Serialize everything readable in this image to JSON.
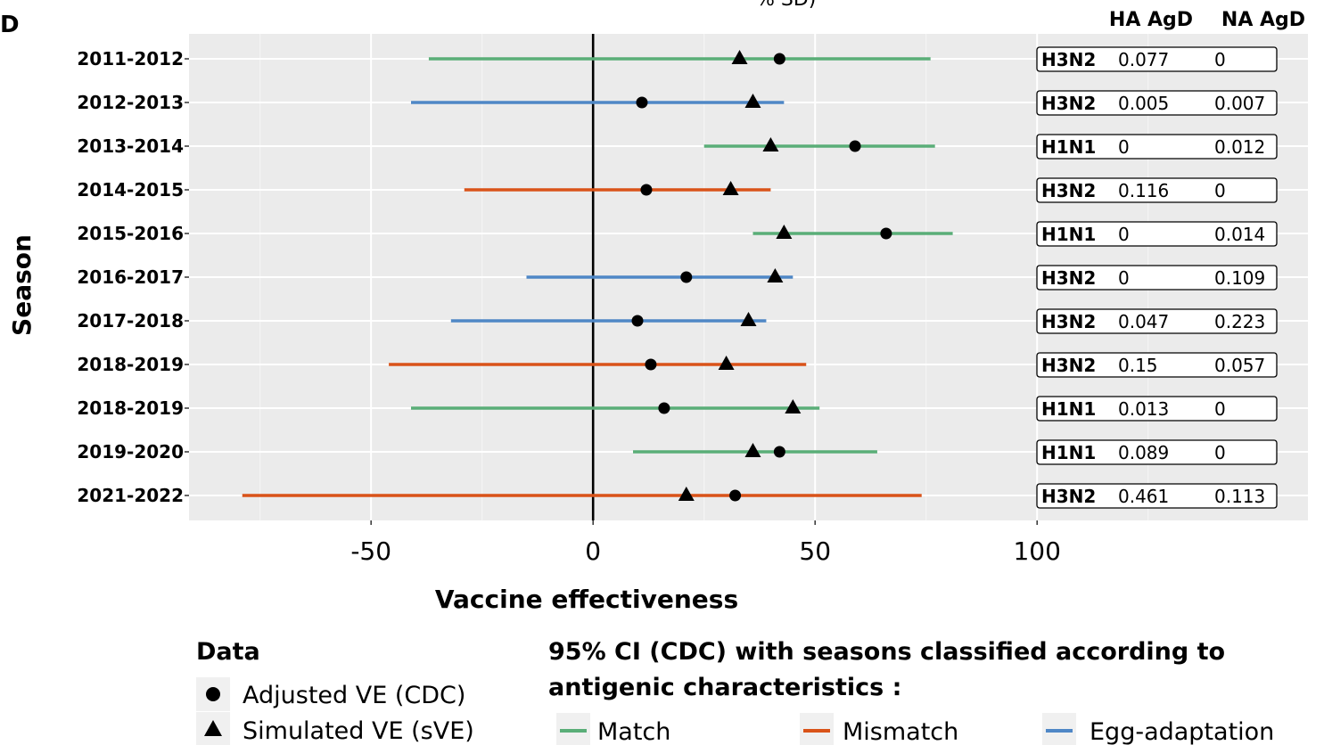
{
  "panel_label": "D",
  "top_partial_text": "% SD)",
  "chart_data": {
    "type": "forest",
    "xlabel": "Vaccine effectiveness",
    "ylabel": "Season",
    "xlim": [
      -91,
      161
    ],
    "xticks": [
      -50,
      0,
      50,
      100
    ],
    "reference_line_x": 0,
    "grid": true,
    "colors": {
      "Match": "#5aae78",
      "Mismatch": "#d95319",
      "Egg-adaptation": "#4f87c6"
    },
    "table_headers": [
      "HA AgD",
      "NA AgD"
    ],
    "rows": [
      {
        "season": "2011-2012",
        "classification": "Match",
        "ci_low": -37,
        "ci_high": 76,
        "adjusted_ve": 42,
        "simulated_ve": 33,
        "subtype": "H3N2",
        "ha_agd": "0.077",
        "na_agd": "0"
      },
      {
        "season": "2012-2013",
        "classification": "Egg-adaptation",
        "ci_low": -41,
        "ci_high": 43,
        "adjusted_ve": 11,
        "simulated_ve": 36,
        "subtype": "H3N2",
        "ha_agd": "0.005",
        "na_agd": "0.007"
      },
      {
        "season": "2013-2014",
        "classification": "Match",
        "ci_low": 25,
        "ci_high": 77,
        "adjusted_ve": 59,
        "simulated_ve": 40,
        "subtype": "H1N1",
        "ha_agd": "0",
        "na_agd": "0.012"
      },
      {
        "season": "2014-2015",
        "classification": "Mismatch",
        "ci_low": -29,
        "ci_high": 40,
        "adjusted_ve": 12,
        "simulated_ve": 31,
        "subtype": "H3N2",
        "ha_agd": "0.116",
        "na_agd": "0"
      },
      {
        "season": "2015-2016",
        "classification": "Match",
        "ci_low": 36,
        "ci_high": 81,
        "adjusted_ve": 66,
        "simulated_ve": 43,
        "subtype": "H1N1",
        "ha_agd": "0",
        "na_agd": "0.014"
      },
      {
        "season": "2016-2017",
        "classification": "Egg-adaptation",
        "ci_low": -15,
        "ci_high": 45,
        "adjusted_ve": 21,
        "simulated_ve": 41,
        "subtype": "H3N2",
        "ha_agd": "0",
        "na_agd": "0.109"
      },
      {
        "season": "2017-2018",
        "classification": "Egg-adaptation",
        "ci_low": -32,
        "ci_high": 39,
        "adjusted_ve": 10,
        "simulated_ve": 35,
        "subtype": "H3N2",
        "ha_agd": "0.047",
        "na_agd": "0.223"
      },
      {
        "season": "2018-2019",
        "classification": "Mismatch",
        "ci_low": -46,
        "ci_high": 48,
        "adjusted_ve": 13,
        "simulated_ve": 30,
        "subtype": "H3N2",
        "ha_agd": "0.15",
        "na_agd": "0.057"
      },
      {
        "season": "2018-2019",
        "classification": "Match",
        "ci_low": -41,
        "ci_high": 51,
        "adjusted_ve": 16,
        "simulated_ve": 45,
        "subtype": "H1N1",
        "ha_agd": "0.013",
        "na_agd": "0"
      },
      {
        "season": "2019-2020",
        "classification": "Match",
        "ci_low": 9,
        "ci_high": 64,
        "adjusted_ve": 42,
        "simulated_ve": 36,
        "subtype": "H1N1",
        "ha_agd": "0.089",
        "na_agd": "0"
      },
      {
        "season": "2021-2022",
        "classification": "Mismatch",
        "ci_low": -79,
        "ci_high": 74,
        "adjusted_ve": 32,
        "simulated_ve": 21,
        "subtype": "H3N2",
        "ha_agd": "0.461",
        "na_agd": "0.113"
      }
    ]
  },
  "legend_data": {
    "title": "Data",
    "items": [
      "Adjusted VE (CDC)",
      "Simulated VE (sVE)"
    ]
  },
  "legend_ci": {
    "title_line1": "95% CI (CDC) with seasons classified according to",
    "title_line2": "antigenic characteristics :",
    "items": [
      "Match",
      "Mismatch",
      "Egg-adaptation"
    ]
  }
}
